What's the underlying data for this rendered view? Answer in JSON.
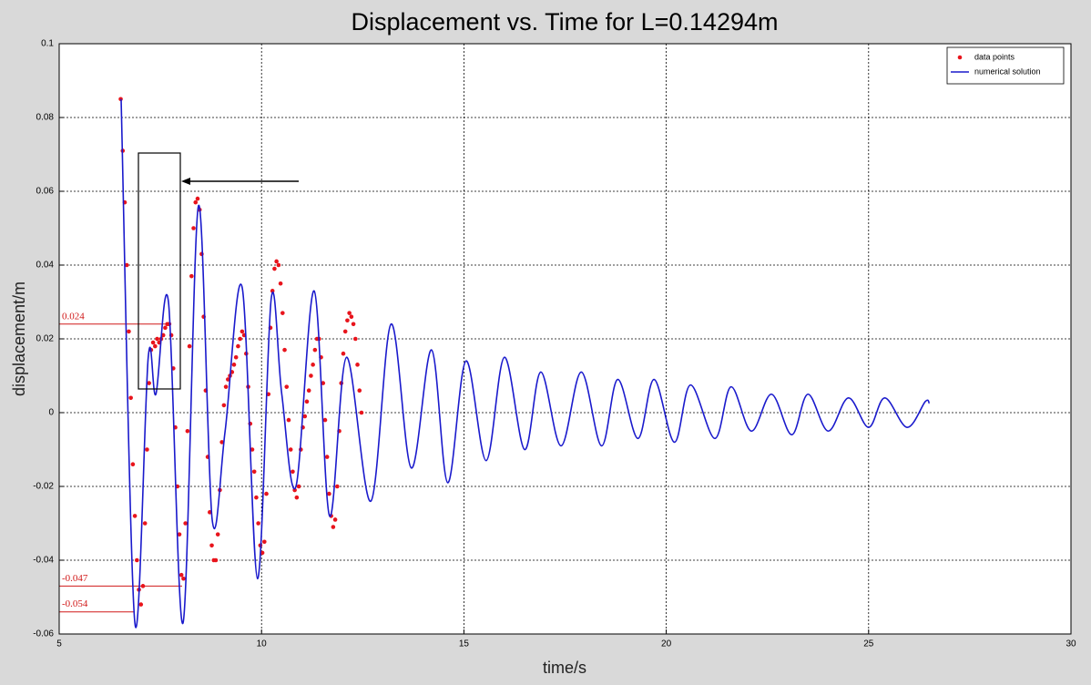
{
  "chart_data": {
    "type": "line",
    "title": "Displacement vs. Time for L=0.14294m",
    "xlabel": "time/s",
    "ylabel": "displacement/m",
    "xlim": [
      5,
      30
    ],
    "ylim": [
      -0.06,
      0.1
    ],
    "xticks": [
      5,
      10,
      15,
      20,
      25,
      30
    ],
    "yticks": [
      -0.06,
      -0.04,
      -0.02,
      0,
      0.02,
      0.04,
      0.06,
      0.08,
      0.1
    ],
    "grid": true,
    "legend": "upper right",
    "annotations": [
      0.024,
      -0.047,
      -0.054
    ],
    "series": [
      {
        "name": "data points",
        "type": "scatter",
        "color": "#e8141c",
        "x": [
          6.52,
          6.57,
          6.62,
          6.67,
          6.72,
          6.77,
          6.82,
          6.87,
          6.92,
          6.97,
          7.02,
          7.07,
          7.12,
          7.17,
          7.22,
          7.27,
          7.32,
          7.37,
          7.42,
          7.47,
          7.52,
          7.57,
          7.62,
          7.67,
          7.72,
          7.77,
          7.82,
          7.87,
          7.92,
          7.97,
          8.02,
          8.07,
          8.12,
          8.17,
          8.22,
          8.27,
          8.32,
          8.37,
          8.42,
          8.47,
          8.52,
          8.57,
          8.62,
          8.67,
          8.72,
          8.77,
          8.82,
          8.87,
          8.92,
          8.97,
          9.02,
          9.07,
          9.12,
          9.17,
          9.22,
          9.27,
          9.32,
          9.37,
          9.42,
          9.47,
          9.52,
          9.57,
          9.62,
          9.67,
          9.72,
          9.77,
          9.82,
          9.87,
          9.92,
          9.97,
          10.02,
          10.07,
          10.12,
          10.17,
          10.22,
          10.27,
          10.32,
          10.37,
          10.42,
          10.47,
          10.52,
          10.57,
          10.62,
          10.67,
          10.72,
          10.77,
          10.82,
          10.87,
          10.92,
          10.97,
          11.02,
          11.07,
          11.12,
          11.17,
          11.22,
          11.27,
          11.32,
          11.37,
          11.42,
          11.47,
          11.52,
          11.57,
          11.62,
          11.67,
          11.72,
          11.77,
          11.82,
          11.87,
          11.92,
          11.97,
          12.02,
          12.07,
          12.12,
          12.17,
          12.22,
          12.27,
          12.32,
          12.37,
          12.42,
          12.47
        ],
        "values": [
          0.085,
          0.071,
          0.057,
          0.04,
          0.022,
          0.004,
          -0.014,
          -0.028,
          -0.04,
          -0.048,
          -0.052,
          -0.047,
          -0.03,
          -0.01,
          0.008,
          0.017,
          0.019,
          0.018,
          0.02,
          0.019,
          0.02,
          0.021,
          0.023,
          0.024,
          0.024,
          0.021,
          0.012,
          -0.004,
          -0.02,
          -0.033,
          -0.044,
          -0.045,
          -0.03,
          -0.005,
          0.018,
          0.037,
          0.05,
          0.057,
          0.058,
          0.055,
          0.043,
          0.026,
          0.006,
          -0.012,
          -0.027,
          -0.036,
          -0.04,
          -0.04,
          -0.033,
          -0.021,
          -0.008,
          0.002,
          0.007,
          0.009,
          0.01,
          0.011,
          0.013,
          0.015,
          0.018,
          0.02,
          0.022,
          0.021,
          0.016,
          0.007,
          -0.003,
          -0.01,
          -0.016,
          -0.023,
          -0.03,
          -0.036,
          -0.038,
          -0.035,
          -0.022,
          0.005,
          0.023,
          0.033,
          0.039,
          0.041,
          0.04,
          0.035,
          0.027,
          0.017,
          0.007,
          -0.002,
          -0.01,
          -0.016,
          -0.021,
          -0.023,
          -0.02,
          -0.01,
          -0.004,
          -0.001,
          0.003,
          0.006,
          0.01,
          0.013,
          0.017,
          0.02,
          0.02,
          0.015,
          0.008,
          -0.002,
          -0.012,
          -0.022,
          -0.028,
          -0.031,
          -0.029,
          -0.02,
          -0.005,
          0.008,
          0.016,
          0.022,
          0.025,
          0.027,
          0.026,
          0.024,
          0.02,
          0.013,
          0.006,
          0.0
        ]
      },
      {
        "name": "numerical solution",
        "type": "line",
        "color": "#1a1acc",
        "x": [
          6.53,
          6.87,
          7.2,
          7.39,
          7.7,
          8.06,
          8.44,
          8.78,
          9.1,
          9.52,
          9.9,
          10.24,
          10.5,
          10.85,
          11.3,
          11.68,
          12.1,
          12.7,
          13.2,
          13.7,
          14.2,
          14.6,
          15.05,
          15.55,
          16.0,
          16.5,
          16.9,
          17.4,
          17.9,
          18.4,
          18.8,
          19.3,
          19.7,
          20.2,
          20.6,
          21.2,
          21.6,
          22.1,
          22.6,
          23.1,
          23.5,
          24.0,
          24.5,
          25.0,
          25.4,
          25.95,
          26.4,
          26.5
        ],
        "values": [
          0.085,
          -0.057,
          0.015,
          0.005,
          0.03,
          -0.057,
          0.056,
          -0.029,
          -0.005,
          0.034,
          -0.045,
          0.031,
          0.005,
          -0.02,
          0.033,
          -0.028,
          0.015,
          -0.024,
          0.024,
          -0.015,
          0.017,
          -0.019,
          0.014,
          -0.013,
          0.015,
          -0.01,
          0.011,
          -0.009,
          0.011,
          -0.009,
          0.009,
          -0.007,
          0.009,
          -0.008,
          0.0075,
          -0.007,
          0.007,
          -0.005,
          0.005,
          -0.006,
          0.005,
          -0.005,
          0.004,
          -0.004,
          0.004,
          -0.004,
          0.003,
          0.0025
        ]
      }
    ]
  }
}
